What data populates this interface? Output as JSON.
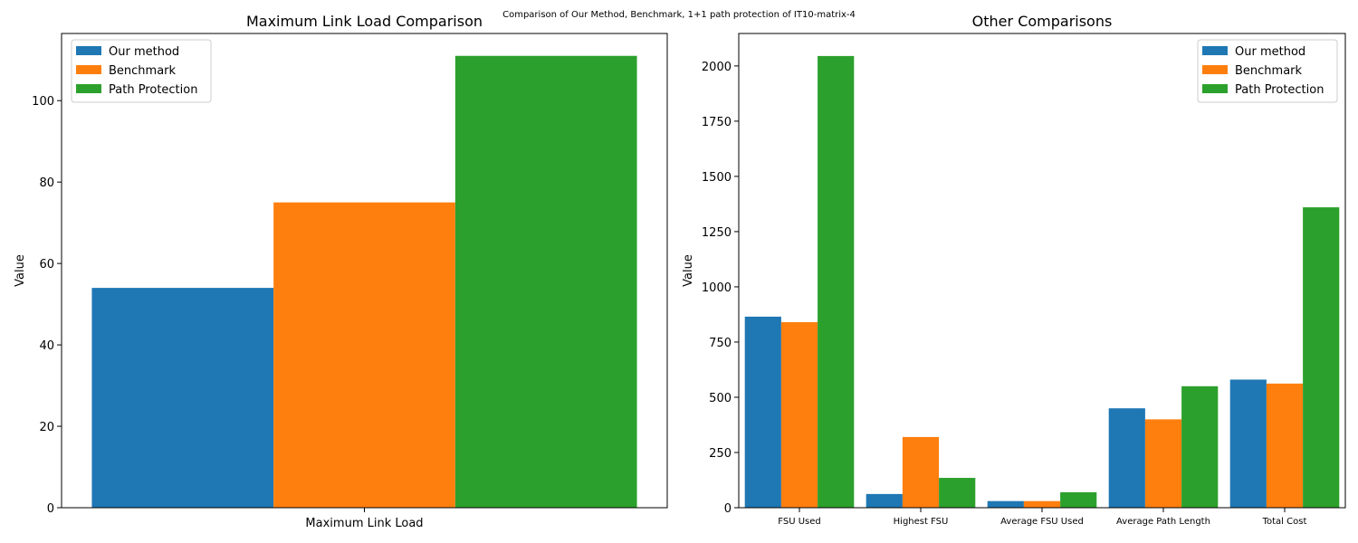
{
  "sup_title": "Comparison of Our Method, Benchmark, 1+1 path protection of IT10-matrix-4",
  "colors": {
    "Our method": "#1f77b4",
    "Benchmark": "#ff7f0e",
    "Path Protection": "#2ca02c"
  },
  "chart_data": [
    {
      "type": "bar",
      "title": "Maximum Link Load Comparison",
      "xlabel": "",
      "ylabel": "Value",
      "categories": [
        "Maximum Link Load"
      ],
      "series": [
        {
          "name": "Our method",
          "values": [
            54
          ]
        },
        {
          "name": "Benchmark",
          "values": [
            75
          ]
        },
        {
          "name": "Path Protection",
          "values": [
            111
          ]
        }
      ],
      "ylim": [
        0,
        116.5
      ],
      "yticks": [
        0,
        20,
        40,
        60,
        80,
        100
      ],
      "legend": "upper left",
      "grid": false
    },
    {
      "type": "bar",
      "title": "Other Comparisons",
      "xlabel": "",
      "ylabel": "Value",
      "categories": [
        "FSU Used",
        "Highest FSU",
        "Average FSU Used",
        "Average Path Length",
        "Total Cost"
      ],
      "series": [
        {
          "name": "Our method",
          "values": [
            865,
            62,
            30,
            450,
            580
          ]
        },
        {
          "name": "Benchmark",
          "values": [
            840,
            320,
            30,
            400,
            562
          ]
        },
        {
          "name": "Path Protection",
          "values": [
            2045,
            135,
            70,
            550,
            1360
          ]
        }
      ],
      "ylim": [
        0,
        2147
      ],
      "yticks": [
        0,
        250,
        500,
        750,
        1000,
        1250,
        1500,
        1750,
        2000
      ],
      "legend": "upper right",
      "grid": false
    }
  ]
}
